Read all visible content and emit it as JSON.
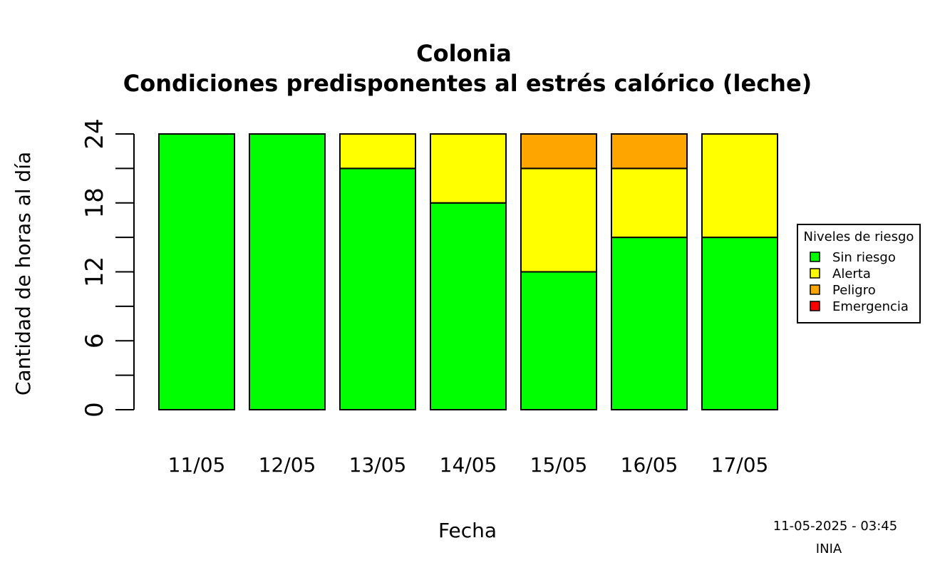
{
  "chart_data": {
    "type": "bar",
    "stacked": true,
    "title": "Colonia",
    "subtitle": "Condiciones predisponentes al estrés calórico (leche)",
    "xlabel": "Fecha",
    "ylabel": "Cantidad de horas al día",
    "ylim": [
      0,
      24
    ],
    "yticks": [
      0,
      6,
      12,
      18,
      24
    ],
    "yticks_minor": [
      0,
      3,
      6,
      9,
      12,
      15,
      18,
      21,
      24
    ],
    "categories": [
      "11/05",
      "12/05",
      "13/05",
      "14/05",
      "15/05",
      "16/05",
      "17/05"
    ],
    "series": [
      {
        "name": "Sin riesgo",
        "color": "#00ff00",
        "values": [
          24,
          24,
          21,
          18,
          12,
          15,
          15
        ]
      },
      {
        "name": "Alerta",
        "color": "#ffff00",
        "values": [
          0,
          0,
          3,
          6,
          9,
          6,
          9
        ]
      },
      {
        "name": "Peligro",
        "color": "#ffa500",
        "values": [
          0,
          0,
          0,
          0,
          3,
          3,
          0
        ]
      },
      {
        "name": "Emergencia",
        "color": "#ff0000",
        "values": [
          0,
          0,
          0,
          0,
          0,
          0,
          0
        ]
      }
    ],
    "legend": {
      "title": "Niveles de riesgo",
      "placement": "right"
    },
    "grid": false
  },
  "footer": {
    "timestamp": "11-05-2025 - 03:45",
    "source": "INIA"
  }
}
